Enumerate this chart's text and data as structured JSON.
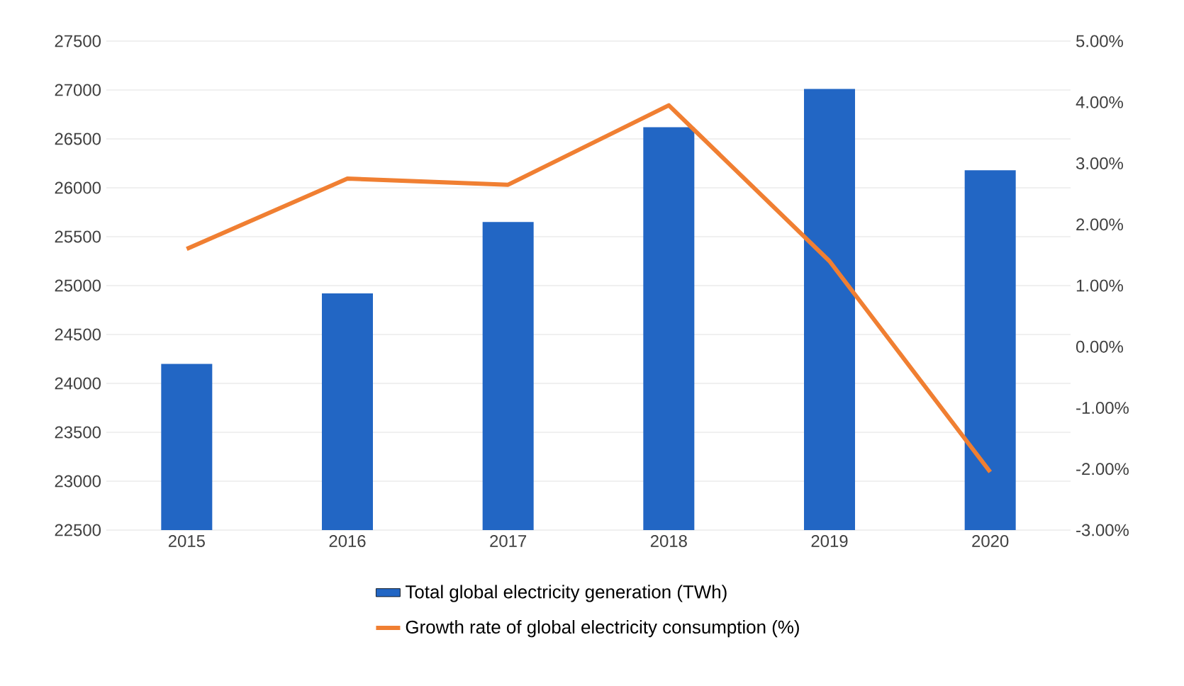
{
  "chart_data": {
    "type": "bar",
    "categories": [
      "2015",
      "2016",
      "2017",
      "2018",
      "2019",
      "2020"
    ],
    "series": [
      {
        "name": "Total global electricity generation (TWh)",
        "color": "#2266c4",
        "values": [
          24200,
          24920,
          25650,
          26620,
          27010,
          26180
        ]
      },
      {
        "name": "Growth rate of global electricity consumption (%)",
        "type": "line",
        "axis": "y2",
        "color": "#f07f32",
        "values": [
          1.6,
          2.75,
          2.65,
          3.95,
          1.4,
          -2.05
        ]
      }
    ],
    "ylim": [
      22500,
      27500
    ],
    "yticks": [
      22500,
      23000,
      23500,
      24000,
      24500,
      25000,
      25500,
      26000,
      26500,
      27000,
      27500
    ],
    "y2lim": [
      -3,
      5
    ],
    "y2ticks": [
      {
        "value": -3,
        "label": "-3.00%"
      },
      {
        "value": -2,
        "label": "-2.00%"
      },
      {
        "value": -1,
        "label": "-1.00%"
      },
      {
        "value": 0,
        "label": "0.00%"
      },
      {
        "value": 1,
        "label": "1.00%"
      },
      {
        "value": 2,
        "label": "2.00%"
      },
      {
        "value": 3,
        "label": "3.00%"
      },
      {
        "value": 4,
        "label": "4.00%"
      },
      {
        "value": 5,
        "label": "5.00%"
      }
    ],
    "grid": "y",
    "legend": "bottom"
  }
}
